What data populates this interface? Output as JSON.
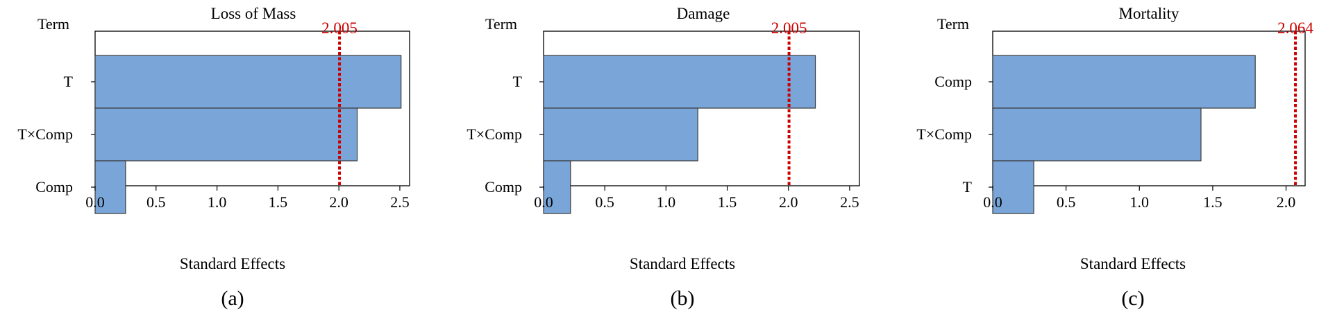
{
  "chart_data": [
    {
      "type": "bar",
      "orientation": "horizontal",
      "title": "Loss of Mass",
      "header_label": "Term",
      "xlabel": "Standard Effects",
      "panel_label": "(a)",
      "categories": [
        "T",
        "T×Comp",
        "Comp"
      ],
      "values": [
        2.51,
        2.15,
        0.25
      ],
      "xlim": [
        0,
        2.58
      ],
      "xticks": [
        "0.0",
        "0.5",
        "1.0",
        "1.5",
        "2.0",
        "2.5"
      ],
      "reference_line": {
        "value": 2.005,
        "label": "2.005",
        "color": "#cc0000"
      },
      "bar_color": "#7aa5d8"
    },
    {
      "type": "bar",
      "orientation": "horizontal",
      "title": "Damage",
      "header_label": "Term",
      "xlabel": "Standard Effects",
      "panel_label": "(b)",
      "categories": [
        "T",
        "T×Comp",
        "Comp"
      ],
      "values": [
        2.22,
        1.26,
        0.22
      ],
      "xlim": [
        0,
        2.58
      ],
      "xticks": [
        "0.0",
        "0.5",
        "1.0",
        "1.5",
        "2.0",
        "2.5"
      ],
      "reference_line": {
        "value": 2.005,
        "label": "2.005",
        "color": "#cc0000"
      },
      "bar_color": "#7aa5d8"
    },
    {
      "type": "bar",
      "orientation": "horizontal",
      "title": "Mortality",
      "header_label": "Term",
      "xlabel": "Standard Effects",
      "panel_label": "(c)",
      "categories": [
        "Comp",
        "T×Comp",
        "T"
      ],
      "values": [
        1.79,
        1.42,
        0.28
      ],
      "xlim": [
        0,
        2.13
      ],
      "xticks": [
        "0.0",
        "0.5",
        "1.0",
        "1.5",
        "2.0"
      ],
      "reference_line": {
        "value": 2.064,
        "label": "2.064",
        "color": "#cc0000"
      },
      "bar_color": "#7aa5d8"
    }
  ]
}
